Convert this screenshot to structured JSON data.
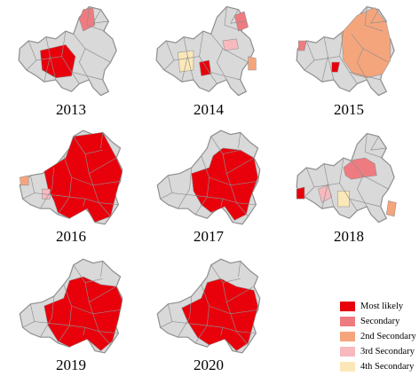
{
  "panels": [
    {
      "year": "2013",
      "shape": "small"
    },
    {
      "year": "2014",
      "shape": "small"
    },
    {
      "year": "2015",
      "shape": "small"
    },
    {
      "year": "2016",
      "shape": "large"
    },
    {
      "year": "2017",
      "shape": "large"
    },
    {
      "year": "2018",
      "shape": "small"
    },
    {
      "year": "2019",
      "shape": "large"
    },
    {
      "year": "2020",
      "shape": "large"
    }
  ],
  "legend": [
    {
      "label": "Most likely",
      "color": "#e8000b"
    },
    {
      "label": "Secondary",
      "color": "#ee7b80"
    },
    {
      "label": "2nd Secondary",
      "color": "#f5a57c"
    },
    {
      "label": "3rd Secondary",
      "color": "#f7b9be"
    },
    {
      "label": "4th Secondary",
      "color": "#fbe8b8"
    }
  ],
  "colors": {
    "base": "#d9d9d9",
    "outline": "#8f8f8f"
  }
}
